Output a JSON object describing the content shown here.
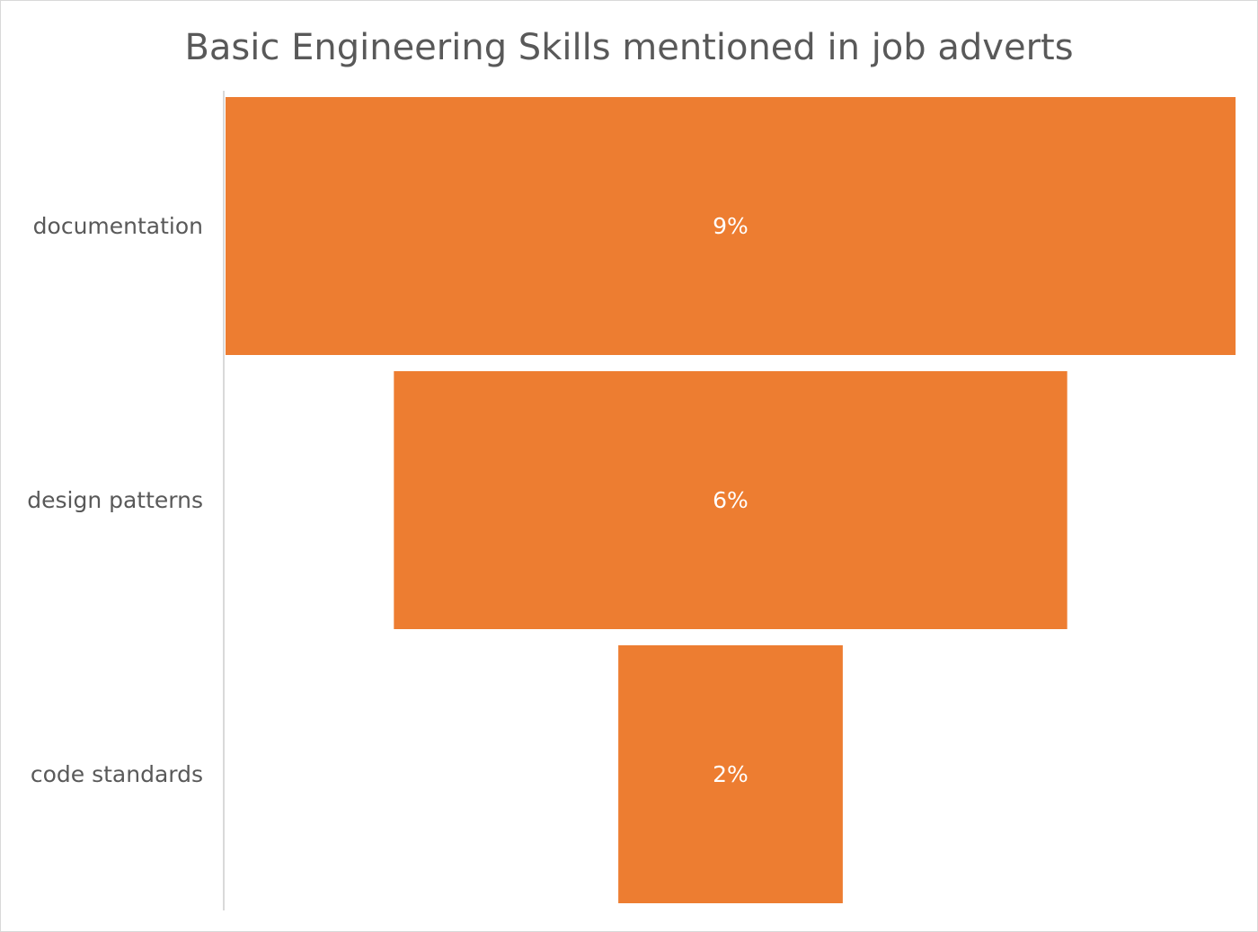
{
  "chart_data": {
    "type": "bar",
    "subtype": "funnel",
    "title": "Basic Engineering  Skills mentioned in job adverts",
    "categories": [
      "documentation",
      "design patterns",
      "code standards"
    ],
    "values": [
      9,
      6,
      2
    ],
    "data_labels": [
      "9%",
      "6%",
      "2%"
    ],
    "unit": "%",
    "bar_color": "#ED7D31",
    "grid": false,
    "legend": "none"
  }
}
